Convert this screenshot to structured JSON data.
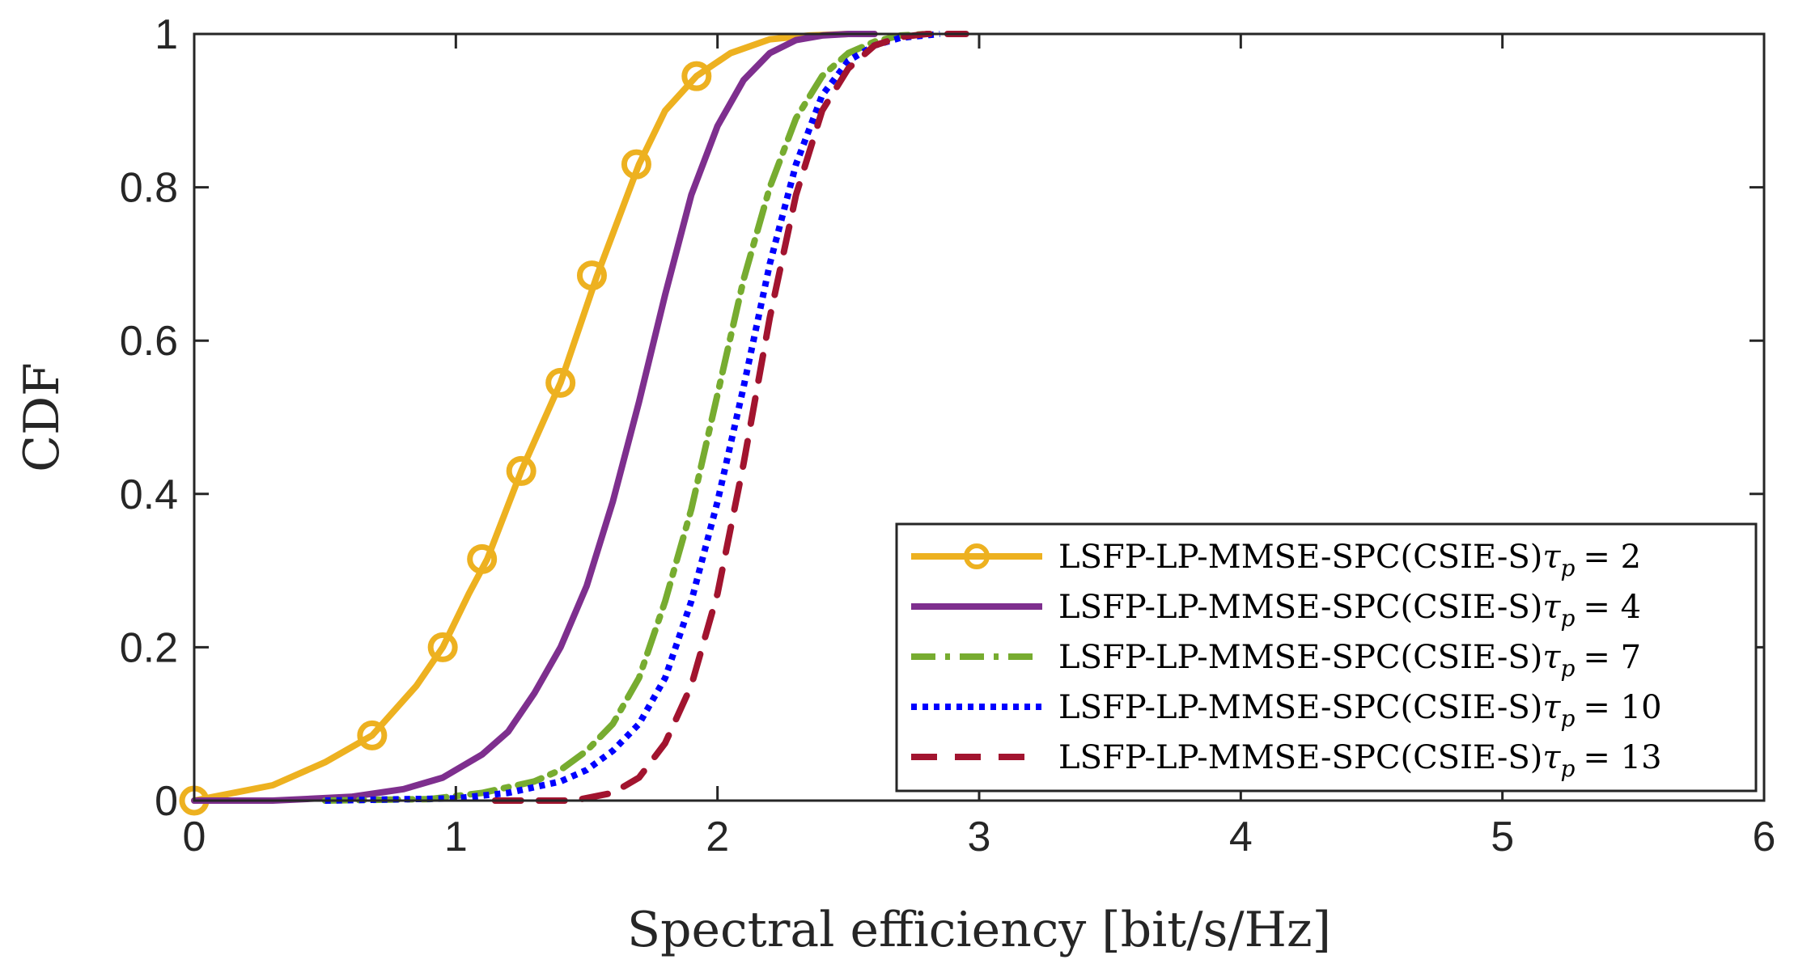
{
  "chart_data": {
    "type": "line",
    "title": "",
    "xlabel": "Spectral efficiency [bit/s/Hz]",
    "ylabel": "CDF",
    "xlim": [
      0,
      6
    ],
    "ylim": [
      0,
      1
    ],
    "x_ticks": [
      0,
      1,
      2,
      3,
      4,
      5,
      6
    ],
    "y_ticks": [
      0,
      0.2,
      0.4,
      0.6,
      0.8,
      1
    ],
    "x_tick_labels": [
      "0",
      "1",
      "2",
      "3",
      "4",
      "5",
      "6"
    ],
    "y_tick_labels": [
      "0",
      "0.2",
      "0.4",
      "0.6",
      "0.8",
      "1"
    ],
    "grid": false,
    "legend_position": "bottom-right",
    "series": [
      {
        "name": "LSFP-LP-MMSE-SPC(CSIE-S)",
        "tau_label": "τ",
        "tau_sub": "p",
        "tau_value": "= 2",
        "color": "#EDB120",
        "style": "solid-marker-circle",
        "x": [
          0.0,
          0.3,
          0.5,
          0.68,
          0.85,
          0.95,
          1.05,
          1.12,
          1.25,
          1.4,
          1.54,
          1.7,
          1.8,
          1.92,
          2.05,
          2.2,
          2.35,
          2.5,
          2.6
        ],
        "y": [
          0.0,
          0.02,
          0.05,
          0.085,
          0.15,
          0.2,
          0.27,
          0.315,
          0.43,
          0.545,
          0.685,
          0.83,
          0.9,
          0.945,
          0.975,
          0.993,
          0.998,
          1.0,
          1.0
        ],
        "markers": [
          {
            "x": 0.0,
            "y": 0.0
          },
          {
            "x": 0.68,
            "y": 0.085
          },
          {
            "x": 0.95,
            "y": 0.2
          },
          {
            "x": 1.1,
            "y": 0.315
          },
          {
            "x": 1.25,
            "y": 0.43
          },
          {
            "x": 1.4,
            "y": 0.545
          },
          {
            "x": 1.52,
            "y": 0.685
          },
          {
            "x": 1.69,
            "y": 0.83
          },
          {
            "x": 1.92,
            "y": 0.945
          }
        ]
      },
      {
        "name": "LSFP-LP-MMSE-SPC(CSIE-S)",
        "tau_label": "τ",
        "tau_sub": "p",
        "tau_value": "= 4",
        "color": "#7E2F8E",
        "style": "solid",
        "x": [
          0.0,
          0.3,
          0.6,
          0.8,
          0.95,
          1.1,
          1.2,
          1.3,
          1.4,
          1.5,
          1.6,
          1.7,
          1.8,
          1.9,
          2.0,
          2.1,
          2.2,
          2.3,
          2.4,
          2.5,
          2.6
        ],
        "y": [
          0.0,
          0.0,
          0.005,
          0.015,
          0.03,
          0.06,
          0.09,
          0.14,
          0.2,
          0.28,
          0.39,
          0.52,
          0.66,
          0.79,
          0.88,
          0.94,
          0.975,
          0.992,
          0.998,
          1.0,
          1.0
        ]
      },
      {
        "name": "LSFP-LP-MMSE-SPC(CSIE-S)",
        "tau_label": "τ",
        "tau_sub": "p",
        "tau_value": "= 7",
        "color": "#77AC30",
        "style": "dash-dot",
        "x": [
          0.5,
          0.9,
          1.1,
          1.3,
          1.4,
          1.5,
          1.6,
          1.7,
          1.8,
          1.9,
          2.0,
          2.1,
          2.2,
          2.3,
          2.4,
          2.5,
          2.6,
          2.7,
          2.8
        ],
        "y": [
          0.0,
          0.002,
          0.01,
          0.025,
          0.04,
          0.065,
          0.1,
          0.16,
          0.26,
          0.38,
          0.53,
          0.68,
          0.8,
          0.89,
          0.945,
          0.975,
          0.99,
          0.998,
          1.0
        ]
      },
      {
        "name": "LSFP-LP-MMSE-SPC(CSIE-S)",
        "tau_label": "τ",
        "tau_sub": "p",
        "tau_value": "= 10",
        "color": "#0000FF",
        "style": "dotted",
        "x": [
          0.5,
          1.0,
          1.2,
          1.4,
          1.5,
          1.6,
          1.7,
          1.8,
          1.9,
          2.0,
          2.1,
          2.2,
          2.3,
          2.4,
          2.5,
          2.6,
          2.7,
          2.85
        ],
        "y": [
          0.0,
          0.003,
          0.01,
          0.025,
          0.04,
          0.065,
          0.1,
          0.16,
          0.26,
          0.39,
          0.54,
          0.7,
          0.83,
          0.92,
          0.965,
          0.985,
          0.995,
          1.0
        ]
      },
      {
        "name": "LSFP-LP-MMSE-SPC(CSIE-S)",
        "tau_label": "τ",
        "tau_sub": "p",
        "tau_value": "= 13",
        "color": "#A2142F",
        "style": "dashed",
        "x": [
          1.15,
          1.45,
          1.6,
          1.7,
          1.8,
          1.9,
          2.0,
          2.1,
          2.2,
          2.3,
          2.4,
          2.5,
          2.6,
          2.7,
          2.8,
          2.95
        ],
        "y": [
          0.0,
          0.0,
          0.01,
          0.03,
          0.075,
          0.15,
          0.27,
          0.44,
          0.63,
          0.79,
          0.9,
          0.955,
          0.985,
          0.996,
          1.0,
          1.0
        ]
      }
    ]
  }
}
